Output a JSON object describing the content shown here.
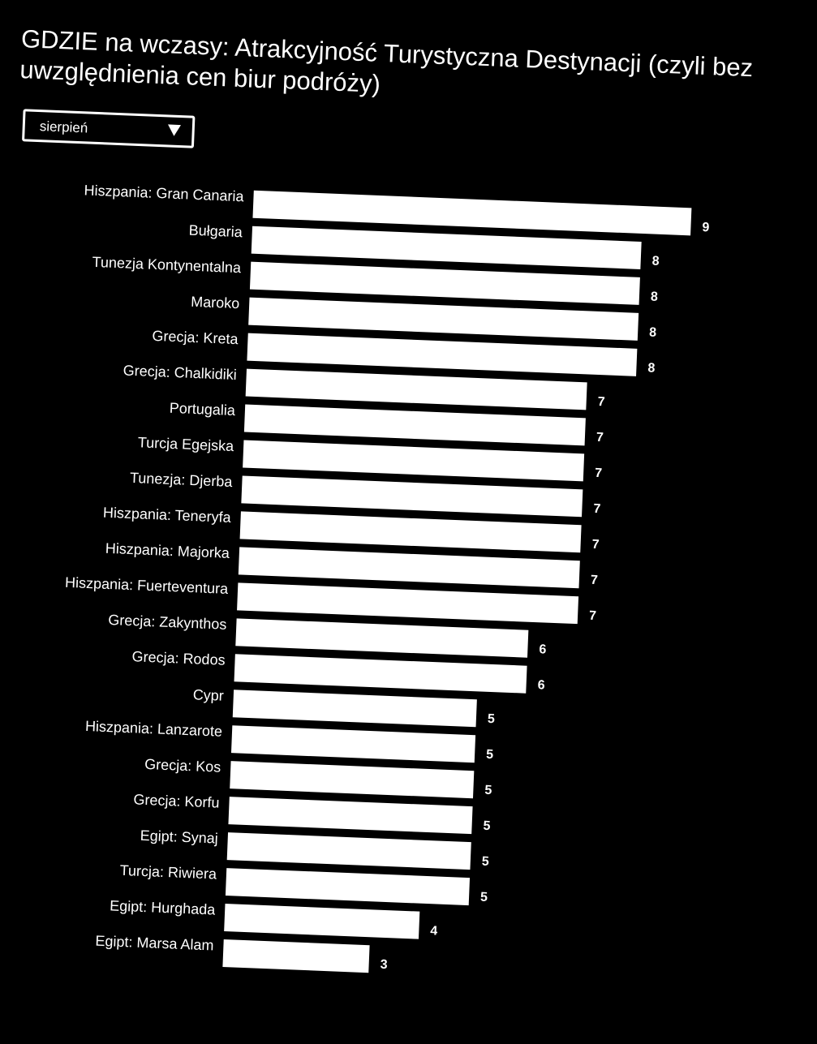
{
  "chart_data": {
    "type": "bar",
    "orientation": "horizontal",
    "title": "GDZIE na wczasy: Atrakcyjność Turystyczna Destynacji (czyli bez uwzględnienia cen biur podróży)",
    "categories": [
      "Hiszpania: Gran Canaria",
      "Bułgaria",
      "Tunezja Kontynentalna",
      "Maroko",
      "Grecja: Kreta",
      "Grecja: Chalkidiki",
      "Portugalia",
      "Turcja Egejska",
      "Tunezja: Djerba",
      "Hiszpania: Teneryfa",
      "Hiszpania: Majorka",
      "Hiszpania: Fuerteventura",
      "Grecja: Zakynthos",
      "Grecja: Rodos",
      "Cypr",
      "Hiszpania: Lanzarote",
      "Grecja: Kos",
      "Grecja: Korfu",
      "Egipt: Synaj",
      "Turcja: Riwiera",
      "Egipt: Hurghada",
      "Egipt: Marsa Alam"
    ],
    "values": [
      9,
      8,
      8,
      8,
      8,
      7,
      7,
      7,
      7,
      7,
      7,
      7,
      6,
      6,
      5,
      5,
      5,
      5,
      5,
      5,
      4,
      3
    ],
    "xlim": [
      0,
      9
    ],
    "grid": false,
    "data_labels": true,
    "colors": {
      "background": "#000000",
      "bar": "#ffffff",
      "text": "#ffffff"
    }
  },
  "filter": {
    "selected": "sierpień",
    "icon": "chevron-down-icon"
  }
}
